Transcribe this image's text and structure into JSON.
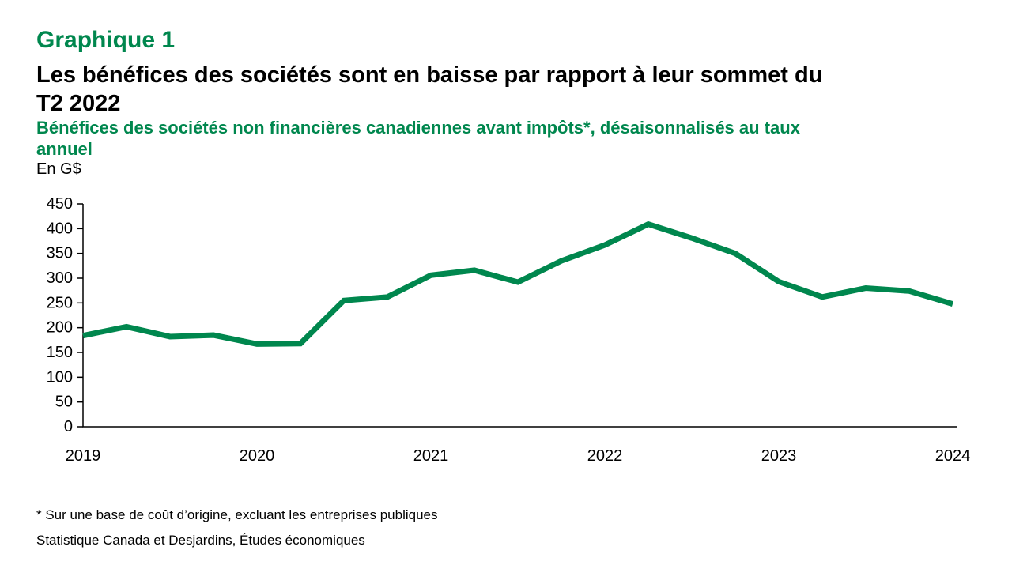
{
  "header": {
    "chart_label": "Graphique 1",
    "title_lines": [
      "Les bénéfices des sociétés sont en baisse par rapport à leur sommet du",
      "T2 2022"
    ],
    "subtitle_lines": [
      "Bénéfices des sociétés non financières canadiennes avant impôts*, désaisonnalisés au taux",
      "annuel"
    ],
    "unit_label": "En G$",
    "accent_color": "#00874E"
  },
  "chart_data": {
    "type": "line",
    "title": "Bénéfices des sociétés non financières canadiennes avant impôts, désaisonnalisés au taux annuel",
    "ylabel": "En G$",
    "x": [
      "T1 2019",
      "T2 2019",
      "T3 2019",
      "T4 2019",
      "T1 2020",
      "T2 2020",
      "T3 2020",
      "T4 2020",
      "T1 2021",
      "T2 2021",
      "T3 2021",
      "T4 2021",
      "T1 2022",
      "T2 2022",
      "T3 2022",
      "T4 2022",
      "T1 2023",
      "T2 2023",
      "T3 2023",
      "T4 2023",
      "T1 2024"
    ],
    "values": [
      184,
      202,
      182,
      185,
      167,
      168,
      255,
      262,
      306,
      316,
      292,
      335,
      367,
      409,
      381,
      350,
      293,
      262,
      280,
      274,
      248
    ],
    "ylim": [
      0,
      450
    ],
    "ytick_step": 50,
    "xtick_labels": [
      "2019",
      "2020",
      "2021",
      "2022",
      "2023",
      "2024"
    ],
    "quarters_per_year": 4,
    "line_color": "#00874E",
    "axis_color": "#000000",
    "grid": false,
    "legend_position": "none"
  },
  "footnotes": [
    "* Sur une base de coût d’origine, excluant les entreprises publiques",
    "Statistique Canada et Desjardins, Études économiques"
  ]
}
